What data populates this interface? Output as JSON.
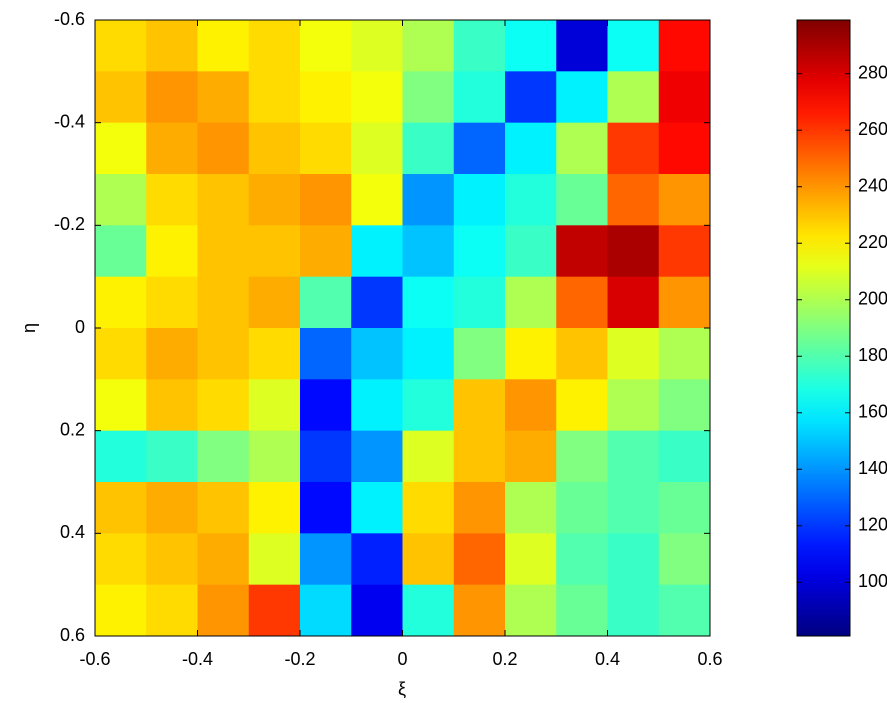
{
  "chart_data": {
    "type": "heatmap",
    "colormap": "jet",
    "xlabel": "ξ",
    "ylabel": "η",
    "x": [
      -0.55,
      -0.45,
      -0.35,
      -0.25,
      -0.15,
      -0.05,
      0.05,
      0.15,
      0.25,
      0.35,
      0.45,
      0.55
    ],
    "y": [
      -0.55,
      -0.45,
      -0.35,
      -0.25,
      -0.15,
      -0.05,
      0.05,
      0.15,
      0.25,
      0.35,
      0.45,
      0.55
    ],
    "z": [
      [
        225,
        230,
        220,
        225,
        215,
        210,
        200,
        175,
        165,
        100,
        165,
        270
      ],
      [
        230,
        240,
        235,
        225,
        220,
        215,
        190,
        170,
        120,
        160,
        200,
        275
      ],
      [
        215,
        235,
        240,
        230,
        225,
        210,
        175,
        130,
        160,
        200,
        260,
        270
      ],
      [
        200,
        225,
        230,
        235,
        240,
        215,
        140,
        160,
        170,
        185,
        250,
        240
      ],
      [
        185,
        220,
        230,
        230,
        235,
        160,
        150,
        165,
        175,
        285,
        290,
        260
      ],
      [
        220,
        225,
        230,
        235,
        180,
        120,
        165,
        170,
        200,
        250,
        280,
        240
      ],
      [
        225,
        235,
        230,
        225,
        130,
        150,
        160,
        190,
        220,
        230,
        210,
        200
      ],
      [
        215,
        230,
        225,
        210,
        110,
        160,
        170,
        230,
        240,
        220,
        200,
        190
      ],
      [
        170,
        175,
        190,
        200,
        120,
        140,
        210,
        230,
        235,
        190,
        180,
        175
      ],
      [
        230,
        235,
        230,
        220,
        110,
        160,
        225,
        240,
        200,
        185,
        180,
        185
      ],
      [
        225,
        230,
        235,
        210,
        140,
        115,
        230,
        250,
        210,
        180,
        175,
        190
      ],
      [
        220,
        225,
        240,
        260,
        155,
        105,
        170,
        240,
        200,
        185,
        175,
        180
      ]
    ],
    "xlim": [
      -0.6,
      0.6
    ],
    "xticks": [
      -0.6,
      -0.4,
      -0.2,
      0,
      0.2,
      0.4,
      0.6
    ],
    "ylim": [
      -0.6,
      0.6
    ],
    "y_inverted": true,
    "yticks": [
      -0.6,
      -0.4,
      -0.2,
      0,
      0.2,
      0.4,
      0.6
    ],
    "clim": [
      81,
      299
    ],
    "cticks": [
      100,
      120,
      140,
      160,
      180,
      200,
      220,
      240,
      260,
      280
    ]
  }
}
